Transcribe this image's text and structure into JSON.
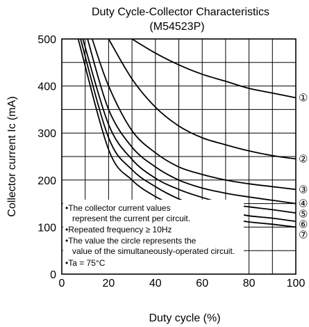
{
  "chart_data": {
    "type": "line",
    "title": "Duty Cycle-Collector Characteristics",
    "subtitle": "(M54523P)",
    "xlabel": "Duty cycle  (%)",
    "ylabel": "Collector current  Ic (mA)",
    "xlim": [
      0,
      100
    ],
    "ylim": [
      0,
      500
    ],
    "xticks": [
      "0",
      "20",
      "40",
      "60",
      "80",
      "100"
    ],
    "yticks": [
      "0",
      "100",
      "200",
      "300",
      "400",
      "500"
    ],
    "grid": true,
    "note_lines": [
      "•The collector current values",
      "represent the current per circuit.",
      "•Repeated frequency  ≥ 10Hz",
      "•The value the circle represents the",
      "value of the simultaneously-operated circuit.",
      "•Ta = 75°C"
    ],
    "series": [
      {
        "name": "①",
        "x": [
          30,
          40,
          50,
          60,
          70,
          80,
          90,
          100
        ],
        "values": [
          500,
          470,
          445,
          425,
          410,
          395,
          385,
          375
        ]
      },
      {
        "name": "②",
        "x": [
          20,
          30,
          40,
          50,
          60,
          70,
          80,
          90,
          100
        ],
        "values": [
          500,
          415,
          355,
          315,
          290,
          275,
          262,
          252,
          245
        ]
      },
      {
        "name": "③",
        "x": [
          13,
          20,
          30,
          40,
          50,
          60,
          70,
          80,
          90,
          100
        ],
        "values": [
          500,
          400,
          305,
          258,
          228,
          212,
          200,
          192,
          186,
          180
        ]
      },
      {
        "name": "④",
        "x": [
          11,
          20,
          30,
          40,
          50,
          60,
          70,
          80,
          90,
          100
        ],
        "values": [
          500,
          350,
          270,
          228,
          200,
          183,
          172,
          164,
          157,
          150
        ]
      },
      {
        "name": "⑤",
        "x": [
          9,
          20,
          30,
          40,
          50,
          60,
          70,
          80,
          90,
          100
        ],
        "values": [
          500,
          318,
          244,
          204,
          180,
          163,
          150,
          143,
          137,
          130
        ]
      },
      {
        "name": "⑥",
        "x": [
          8,
          20,
          30,
          40,
          50,
          60,
          70,
          80,
          90,
          100
        ],
        "values": [
          500,
          290,
          222,
          186,
          160,
          143,
          133,
          124,
          119,
          112
        ]
      },
      {
        "name": "⑦",
        "x": [
          7,
          20,
          30,
          40,
          50,
          60,
          70,
          80,
          90,
          100
        ],
        "values": [
          500,
          265,
          200,
          165,
          142,
          127,
          118,
          111,
          106,
          100
        ]
      }
    ]
  }
}
